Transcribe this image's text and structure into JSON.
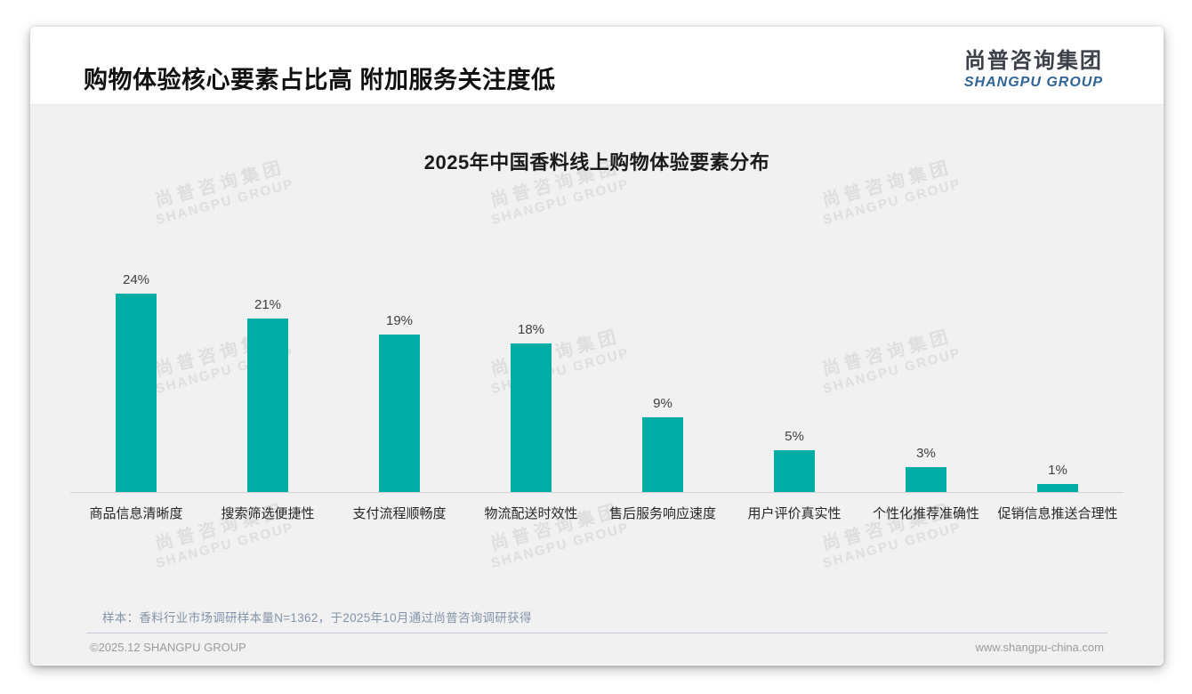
{
  "page": {
    "header": {
      "title": "购物体验核心要素占比高 附加服务关注度低"
    },
    "logo": {
      "cn": "尚普咨询集团",
      "en": "SHANGPU GROUP",
      "en_color": "#2e6496"
    },
    "watermark": {
      "cn": "尚普咨询集团",
      "en": "SHANGPU GROUP"
    },
    "sample_note": "样本：香料行业市场调研样本量N=1362，于2025年10月通过尚普咨询调研获得",
    "footer": {
      "left": "©2025.12 SHANGPU GROUP",
      "right": "www.shangpu-china.com"
    }
  },
  "chart_data": {
    "type": "bar",
    "title": "2025年中国香料线上购物体验要素分布",
    "categories": [
      "商品信息清晰度",
      "搜索筛选便捷性",
      "支付流程顺畅度",
      "物流配送时效性",
      "售后服务响应速度",
      "用户评价真实性",
      "个性化推荐准确性",
      "促销信息推送合理性"
    ],
    "values": [
      24,
      21,
      19,
      18,
      9,
      5,
      3,
      1
    ],
    "data_labels": [
      "24%",
      "21%",
      "19%",
      "18%",
      "9%",
      "5%",
      "3%",
      "1%"
    ],
    "unit": "%",
    "xlabel": "",
    "ylabel": "",
    "ylim": [
      0,
      26
    ],
    "grid": false,
    "legend": false,
    "bar_color": "#00ADA5",
    "axis_line_color": "#d3d3d3"
  }
}
